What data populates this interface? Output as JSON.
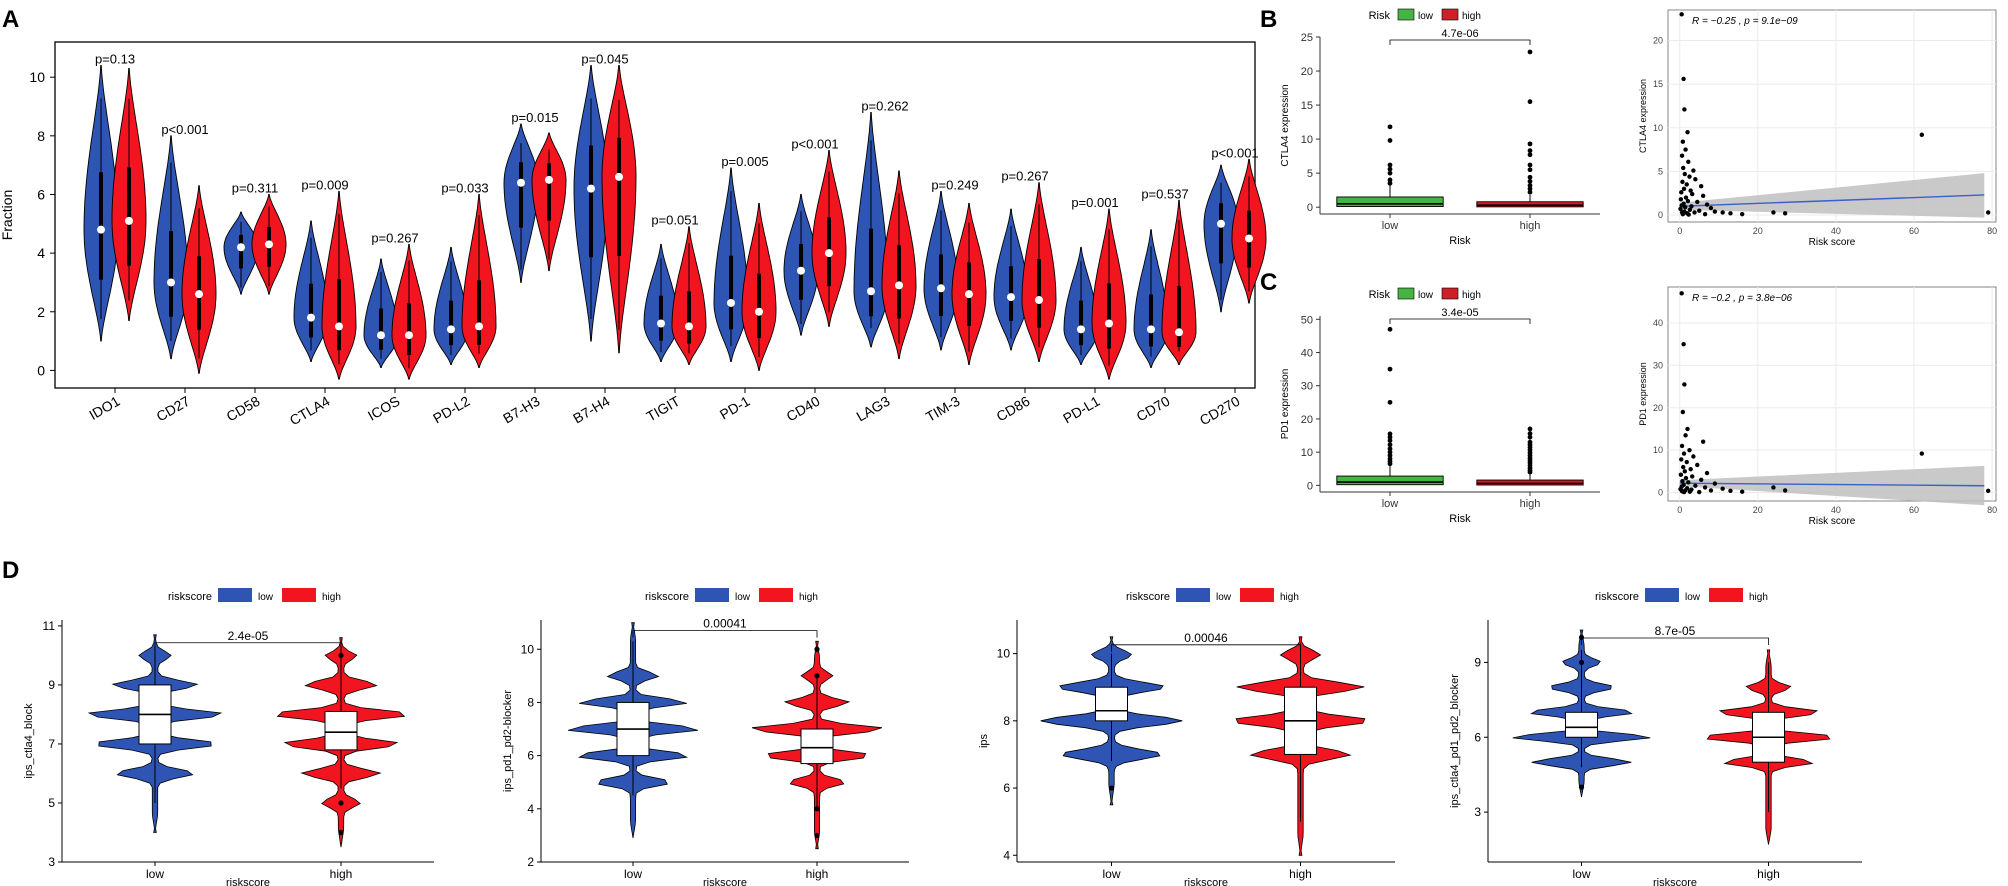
{
  "panel_letters": [
    "A",
    "B",
    "C",
    "D"
  ],
  "colors": {
    "low": "#2f55b4",
    "high": "#f2141f",
    "box_low": "#46b442",
    "box_high": "#cf2027",
    "ci": "#bfbfbf",
    "fit": "#3a5fcd"
  },
  "chart_data": [
    {
      "id": "A",
      "type": "violin",
      "ylabel": "Fraction",
      "ylim": [
        -0.6,
        11.2
      ],
      "yticks": [
        0,
        2,
        4,
        6,
        8,
        10
      ],
      "categories": [
        "IDO1",
        "CD27",
        "CD58",
        "CTLA4",
        "ICOS",
        "PD-L2",
        "B7-H3",
        "B7-H4",
        "TIGIT",
        "PD-1",
        "CD40",
        "LAG3",
        "TIM-3",
        "CD86",
        "PD-L1",
        "CD70",
        "CD270"
      ],
      "pvalues": [
        "p=0.13",
        "p<0.001",
        "p=0.311",
        "p=0.009",
        "p=0.267",
        "p=0.033",
        "p=0.015",
        "p=0.045",
        "p=0.051",
        "p=0.005",
        "p<0.001",
        "p=0.262",
        "p=0.249",
        "p=0.267",
        "p=0.001",
        "p=0.537",
        "p<0.001"
      ],
      "series": [
        {
          "name": "low",
          "median": [
            4.8,
            3.0,
            4.2,
            1.8,
            1.2,
            1.4,
            6.4,
            6.2,
            1.6,
            2.3,
            3.4,
            2.7,
            2.8,
            2.5,
            1.4,
            1.4,
            5.0
          ],
          "min": [
            1.0,
            0.4,
            2.6,
            0.3,
            0.1,
            0.2,
            3.0,
            1.0,
            0.3,
            0.3,
            1.2,
            0.8,
            0.7,
            0.7,
            0.2,
            0.1,
            2.0
          ],
          "max": [
            10.4,
            8.0,
            5.4,
            5.1,
            3.8,
            4.2,
            8.4,
            10.4,
            4.3,
            6.9,
            6.0,
            8.8,
            6.1,
            5.5,
            4.2,
            4.8,
            7.0
          ]
        },
        {
          "name": "high",
          "median": [
            5.1,
            2.6,
            4.3,
            1.5,
            1.2,
            1.5,
            6.5,
            6.6,
            1.5,
            2.0,
            4.0,
            2.9,
            2.6,
            2.4,
            1.6,
            1.3,
            4.5
          ],
          "min": [
            1.7,
            -0.1,
            2.6,
            -0.3,
            -0.3,
            0.1,
            3.4,
            0.6,
            0.2,
            0.0,
            1.5,
            0.4,
            0.2,
            0.3,
            -0.3,
            0.2,
            2.3
          ],
          "max": [
            10.3,
            6.3,
            6.0,
            6.1,
            4.3,
            6.0,
            8.1,
            10.4,
            4.9,
            5.7,
            7.5,
            6.8,
            5.7,
            6.4,
            5.5,
            5.8,
            7.2
          ]
        }
      ]
    },
    {
      "id": "B-box",
      "type": "box",
      "legend_title": "Risk",
      "legend": [
        "low",
        "high"
      ],
      "xlabel": "Risk",
      "ylabel": "CTLA4 expression",
      "categories": [
        "low",
        "high"
      ],
      "ylim": [
        -1,
        25
      ],
      "yticks": [
        0,
        5,
        10,
        15,
        20,
        25
      ],
      "pvalue": "4.7e-06",
      "boxes": [
        {
          "q1": 0.1,
          "median": 0.5,
          "q3": 1.5,
          "whisker_hi": 3.2,
          "outliers": [
            3.5,
            4.0,
            5.0,
            5.6,
            6.2,
            9.8,
            11.8
          ]
        },
        {
          "q1": 0.05,
          "median": 0.3,
          "q3": 0.8,
          "whisker_hi": 1.8,
          "outliers": [
            2.2,
            2.7,
            3.2,
            3.8,
            4.4,
            5.5,
            6.2,
            7.7,
            8.3,
            9.3,
            15.5,
            22.8
          ]
        }
      ]
    },
    {
      "id": "B-scatter",
      "type": "scatter",
      "xlabel": "Risk score",
      "ylabel": "CTLA4 expression",
      "xlim": [
        -3,
        81
      ],
      "ylim": [
        -0.8,
        23.5
      ],
      "xticks": [
        0,
        20,
        40,
        60,
        80
      ],
      "yticks": [
        0,
        5,
        10,
        15,
        20
      ],
      "annotation": "R = −0.25 , p = 9.1e−09",
      "fit": {
        "x": [
          0,
          78
        ],
        "y": [
          1.0,
          2.3
        ],
        "ci_lo": [
          0.6,
          -0.3
        ],
        "ci_hi": [
          1.4,
          4.8
        ]
      },
      "points": [
        [
          0.5,
          23
        ],
        [
          1,
          15.6
        ],
        [
          1.2,
          12.1
        ],
        [
          2,
          9.5
        ],
        [
          0.8,
          8.4
        ],
        [
          1.5,
          7.5
        ],
        [
          0.6,
          6.8
        ],
        [
          2.2,
          6.1
        ],
        [
          0.9,
          5.4
        ],
        [
          3.5,
          5.1
        ],
        [
          1.3,
          4.7
        ],
        [
          2.5,
          4.4
        ],
        [
          4,
          4.1
        ],
        [
          0.7,
          3.8
        ],
        [
          1.8,
          3.5
        ],
        [
          5.5,
          3.3
        ],
        [
          1.1,
          3.0
        ],
        [
          2.8,
          2.8
        ],
        [
          0.4,
          2.6
        ],
        [
          3.2,
          2.4
        ],
        [
          6,
          2.2
        ],
        [
          1.6,
          2.0
        ],
        [
          0.3,
          1.8
        ],
        [
          2.1,
          1.6
        ],
        [
          4.5,
          1.5
        ],
        [
          1,
          1.3
        ],
        [
          7,
          1.2
        ],
        [
          0.5,
          1.1
        ],
        [
          3,
          1.0
        ],
        [
          1.4,
          0.9
        ],
        [
          8,
          0.8
        ],
        [
          0.2,
          0.7
        ],
        [
          2.6,
          0.6
        ],
        [
          5,
          0.5
        ],
        [
          1.2,
          0.4
        ],
        [
          9,
          0.4
        ],
        [
          0.6,
          0.3
        ],
        [
          3.8,
          0.3
        ],
        [
          11,
          0.3
        ],
        [
          1.9,
          0.2
        ],
        [
          13,
          0.2
        ],
        [
          0.8,
          0.1
        ],
        [
          6.5,
          0.1
        ],
        [
          16,
          0.1
        ],
        [
          2.3,
          0.05
        ],
        [
          24,
          0.3
        ],
        [
          27,
          0.2
        ],
        [
          62,
          9.2
        ],
        [
          79,
          0.3
        ]
      ]
    },
    {
      "id": "C-box",
      "type": "box",
      "legend_title": "Risk",
      "legend": [
        "low",
        "high"
      ],
      "xlabel": "Risk",
      "ylabel": "PD1 expression",
      "categories": [
        "low",
        "high"
      ],
      "ylim": [
        -2,
        51
      ],
      "yticks": [
        0,
        10,
        20,
        30,
        40,
        50
      ],
      "pvalue": "3.4e-05",
      "boxes": [
        {
          "q1": 0.2,
          "median": 1.0,
          "q3": 2.8,
          "whisker_hi": 6.0,
          "outliers": [
            6.5,
            7.2,
            8.0,
            9.0,
            10.0,
            11.0,
            12.2,
            13.5,
            14.5,
            15.5,
            25.0,
            35.0,
            47.0
          ]
        },
        {
          "q1": 0.1,
          "median": 0.6,
          "q3": 1.6,
          "whisker_hi": 3.5,
          "outliers": [
            4.0,
            4.5,
            5.2,
            6.0,
            6.8,
            7.5,
            8.2,
            9.0,
            9.8,
            10.6,
            11.4,
            12.2,
            13.0,
            14.5,
            15.6,
            17.0
          ]
        }
      ]
    },
    {
      "id": "C-scatter",
      "type": "scatter",
      "xlabel": "Risk score",
      "ylabel": "PD1 expression",
      "xlim": [
        -3,
        81
      ],
      "ylim": [
        -2,
        48.5
      ],
      "xticks": [
        0,
        20,
        40,
        60,
        80
      ],
      "yticks": [
        0,
        10,
        20,
        30,
        40
      ],
      "annotation": "R = −0.2 , p = 3.8e−06",
      "fit": {
        "x": [
          0,
          78
        ],
        "y": [
          2.2,
          1.6
        ],
        "ci_lo": [
          1.5,
          -3.0
        ],
        "ci_hi": [
          2.9,
          6.3
        ]
      },
      "points": [
        [
          0.5,
          47
        ],
        [
          1,
          35
        ],
        [
          1.2,
          25.5
        ],
        [
          0.8,
          19
        ],
        [
          2,
          15
        ],
        [
          1.5,
          13.5
        ],
        [
          6,
          12
        ],
        [
          0.6,
          11
        ],
        [
          2.5,
          10
        ],
        [
          1.1,
          9.2
        ],
        [
          3.5,
          8.5
        ],
        [
          0.4,
          7.8
        ],
        [
          1.8,
          7.2
        ],
        [
          4.5,
          6.5
        ],
        [
          0.9,
          6.0
        ],
        [
          2.8,
          5.5
        ],
        [
          1.3,
          5.0
        ],
        [
          7,
          4.6
        ],
        [
          0.3,
          4.2
        ],
        [
          3.2,
          3.8
        ],
        [
          1.6,
          3.4
        ],
        [
          5.5,
          3.0
        ],
        [
          0.7,
          2.7
        ],
        [
          2.2,
          2.4
        ],
        [
          9,
          2.1
        ],
        [
          1,
          1.8
        ],
        [
          4,
          1.6
        ],
        [
          0.5,
          1.4
        ],
        [
          6.5,
          1.2
        ],
        [
          1.9,
          1.0
        ],
        [
          11,
          0.9
        ],
        [
          0.2,
          0.8
        ],
        [
          3,
          0.7
        ],
        [
          1.4,
          0.5
        ],
        [
          8,
          0.5
        ],
        [
          0.6,
          0.3
        ],
        [
          13,
          0.4
        ],
        [
          2.6,
          0.2
        ],
        [
          16,
          0.2
        ],
        [
          1.1,
          0.1
        ],
        [
          5,
          0.1
        ],
        [
          24,
          1.2
        ],
        [
          27,
          0.5
        ],
        [
          62,
          9.2
        ],
        [
          79,
          0.4
        ]
      ]
    },
    {
      "id": "D1",
      "type": "violin_box",
      "legend_title": "riskscore",
      "legend": [
        "low",
        "high"
      ],
      "xlabel": "riskscore",
      "ylabel": "ips_ctla4_block",
      "categories": [
        "low",
        "high"
      ],
      "ylim": [
        3,
        11.2
      ],
      "yticks": [
        3,
        5,
        7,
        9,
        11
      ],
      "pvalue": "2.4e-05",
      "groups": [
        {
          "min": 4.0,
          "max": 10.7,
          "levels": [
            6,
            7,
            8,
            9,
            10
          ],
          "widths": [
            0.55,
            0.9,
            1.0,
            0.6,
            0.2
          ],
          "q1": 7,
          "median": 8,
          "q3": 9,
          "whisker_lo": 5,
          "whisker_hi": 10.3,
          "outliers": []
        },
        {
          "min": 3.5,
          "max": 10.6,
          "levels": [
            5,
            6,
            7,
            8,
            9,
            10
          ],
          "widths": [
            0.25,
            0.55,
            0.85,
            1.0,
            0.5,
            0.2
          ],
          "q1": 6.8,
          "median": 7.4,
          "q3": 8.1,
          "whisker_lo": 5.5,
          "whisker_hi": 10.3,
          "outliers": [
            10.0,
            5.0,
            4.0
          ]
        }
      ]
    },
    {
      "id": "D2",
      "type": "violin_box",
      "legend_title": "riskscore",
      "legend": [
        "low",
        "high"
      ],
      "xlabel": "riskscore",
      "ylabel": "ips_pd1_pd2-blocker",
      "categories": [
        "low",
        "high"
      ],
      "ylim": [
        2,
        11.1
      ],
      "yticks": [
        2,
        4,
        6,
        8,
        10
      ],
      "pvalue": "0.00041",
      "groups": [
        {
          "min": 2.9,
          "max": 11.0,
          "levels": [
            5,
            6,
            7,
            8,
            9
          ],
          "widths": [
            0.55,
            0.85,
            1.0,
            0.8,
            0.35
          ],
          "q1": 6,
          "median": 7,
          "q3": 8,
          "whisker_lo": 4.5,
          "whisker_hi": 10.3,
          "outliers": []
        },
        {
          "min": 2.5,
          "max": 10.3,
          "levels": [
            5,
            6,
            7,
            8,
            9
          ],
          "widths": [
            0.4,
            0.8,
            1.0,
            0.45,
            0.2
          ],
          "q1": 5.7,
          "median": 6.3,
          "q3": 7.0,
          "whisker_lo": 4.0,
          "whisker_hi": 9.0,
          "outliers": [
            10.0,
            9.0,
            4.0,
            3.0
          ]
        }
      ]
    },
    {
      "id": "D3",
      "type": "violin_box",
      "legend_title": "riskscore",
      "legend": [
        "low",
        "high"
      ],
      "xlabel": "riskscore",
      "ylabel": "ips",
      "categories": [
        "low",
        "high"
      ],
      "ylim": [
        3.8,
        11.0
      ],
      "yticks": [
        4,
        6,
        8,
        10
      ],
      "pvalue": "0.00046",
      "groups": [
        {
          "min": 5.5,
          "max": 10.5,
          "levels": [
            7,
            8,
            9,
            10
          ],
          "widths": [
            0.7,
            1.0,
            0.75,
            0.3
          ],
          "q1": 8,
          "median": 8.3,
          "q3": 9,
          "whisker_lo": 6.8,
          "whisker_hi": 10.0,
          "outliers": [
            6.0
          ]
        },
        {
          "min": 4.0,
          "max": 10.5,
          "levels": [
            7,
            8,
            9,
            10
          ],
          "widths": [
            0.7,
            1.0,
            0.9,
            0.3
          ],
          "q1": 7,
          "median": 8,
          "q3": 9,
          "whisker_lo": 5.0,
          "whisker_hi": 10.3,
          "outliers": []
        }
      ]
    },
    {
      "id": "D4",
      "type": "violin_box",
      "legend_title": "riskscore",
      "legend": [
        "low",
        "high"
      ],
      "xlabel": "riskscore",
      "ylabel": "ips_ctla4_pd1_pd2_blocker",
      "categories": [
        "low",
        "high"
      ],
      "ylim": [
        1.0,
        10.7
      ],
      "yticks": [
        3,
        6,
        9
      ],
      "pvalue": "8.7e-05",
      "groups": [
        {
          "min": 3.6,
          "max": 10.3,
          "levels": [
            5,
            6,
            7,
            8,
            9
          ],
          "widths": [
            0.7,
            1.0,
            0.75,
            0.45,
            0.25
          ],
          "q1": 6,
          "median": 6.4,
          "q3": 7,
          "whisker_lo": 4.8,
          "whisker_hi": 9.5,
          "outliers": [
            10.0,
            9.0,
            4.0
          ]
        },
        {
          "min": 1.7,
          "max": 9.5,
          "levels": [
            5,
            6,
            7,
            8
          ],
          "widths": [
            0.65,
            1.0,
            0.75,
            0.3
          ],
          "q1": 5,
          "median": 6,
          "q3": 7,
          "whisker_lo": 3.0,
          "whisker_hi": 9.0,
          "outliers": []
        }
      ]
    }
  ]
}
